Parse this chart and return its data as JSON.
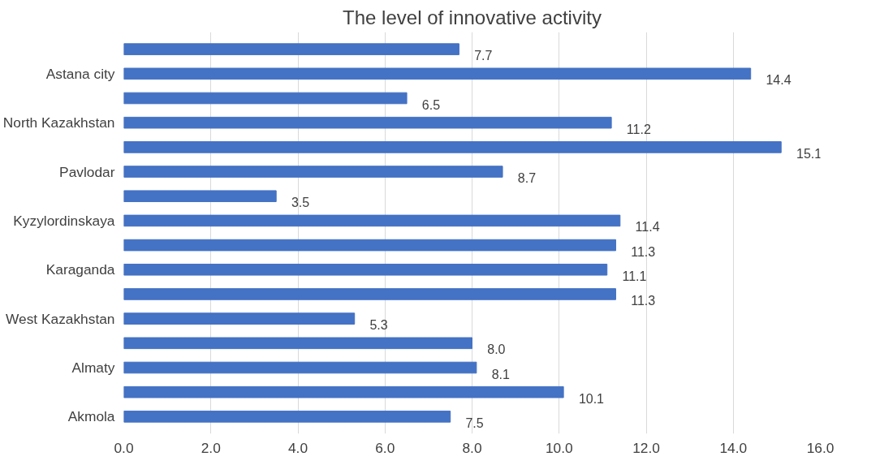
{
  "chart_data": {
    "type": "bar",
    "orientation": "horizontal",
    "title": "The level of innovative activity",
    "categories": [
      null,
      "Astana city",
      null,
      "North Kazakhstan",
      null,
      "Pavlodar",
      null,
      "Kyzylordinskaya",
      null,
      "Karaganda",
      null,
      "West Kazakhstan",
      null,
      "Almaty",
      null,
      "Akmola"
    ],
    "values": [
      7.7,
      14.4,
      6.5,
      11.2,
      15.1,
      8.7,
      3.5,
      11.4,
      11.3,
      11.1,
      11.3,
      5.3,
      8.0,
      8.1,
      10.1,
      7.5
    ],
    "value_labels": [
      "7.7",
      "14.4",
      "6.5",
      "11.2",
      "15.1",
      "8.7",
      "3.5",
      "11.4",
      "11.3",
      "11.1",
      "11.3",
      "5.3",
      "8.0",
      "8.1",
      "10.1",
      "7.5"
    ],
    "color": "#4472c4",
    "xlim": [
      0,
      16
    ],
    "xticks": [
      {
        "value": 0,
        "label": "0.0"
      },
      {
        "value": 2,
        "label": "2.0"
      },
      {
        "value": 4,
        "label": "4.0"
      },
      {
        "value": 6,
        "label": "6.0"
      },
      {
        "value": 8,
        "label": "8.0"
      },
      {
        "value": 10,
        "label": "10.0"
      },
      {
        "value": 12,
        "label": "12.0"
      },
      {
        "value": 14,
        "label": "14.0"
      },
      {
        "value": 16,
        "label": "16.0"
      }
    ],
    "grid": "x"
  }
}
